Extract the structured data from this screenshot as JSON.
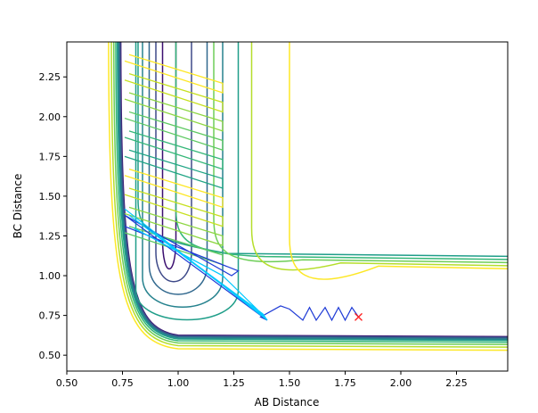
{
  "chart_data": {
    "type": "contour",
    "title": "",
    "xlabel": "AB Distance",
    "ylabel": "BC Distance",
    "xlim": [
      0.5,
      2.48
    ],
    "ylim": [
      0.4,
      2.47
    ],
    "xticks": [
      "0.50",
      "0.75",
      "1.00",
      "1.25",
      "1.50",
      "1.75",
      "2.00",
      "2.25"
    ],
    "yticks": [
      "0.50",
      "0.75",
      "1.00",
      "1.25",
      "1.50",
      "1.75",
      "2.00",
      "2.25"
    ],
    "grid": false,
    "legend": "none",
    "contour_colors": [
      "#3b0f70",
      "#3e4a89",
      "#31688e",
      "#26828e",
      "#1f9e89",
      "#35b779",
      "#6ece58",
      "#b5de2b",
      "#fde725"
    ],
    "trajectory_colors": [
      "#1f3bd6",
      "#00c8ff"
    ],
    "end_marker_color": "#ff2020",
    "series": [
      {
        "points": [
          [
            0.76,
            1.31
          ],
          [
            1.27,
            1.03
          ],
          [
            1.24,
            1.0
          ],
          [
            0.76,
            1.38
          ],
          [
            1.4,
            0.72
          ],
          [
            1.37,
            0.74
          ],
          [
            1.46,
            0.81
          ],
          [
            1.5,
            0.79
          ],
          [
            1.56,
            0.72
          ],
          [
            1.59,
            0.8
          ],
          [
            1.62,
            0.72
          ],
          [
            1.66,
            0.8
          ],
          [
            1.69,
            0.72
          ],
          [
            1.72,
            0.8
          ],
          [
            1.75,
            0.72
          ],
          [
            1.78,
            0.8
          ],
          [
            1.81,
            0.74
          ]
        ]
      },
      {
        "points": [
          [
            0.76,
            1.42
          ],
          [
            1.4,
            0.72
          ],
          [
            1.38,
            0.76
          ],
          [
            0.78,
            1.38
          ],
          [
            1.39,
            0.74
          ],
          [
            1.2,
            1.0
          ],
          [
            0.8,
            1.3
          ]
        ]
      }
    ],
    "end_point": [
      1.81,
      0.74
    ]
  }
}
